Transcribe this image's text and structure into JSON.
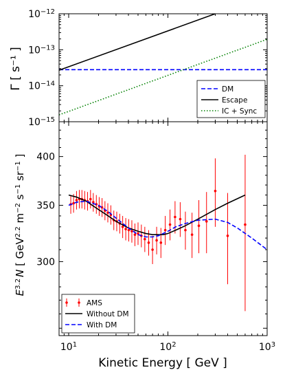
{
  "chart_data": [
    {
      "type": "line",
      "panel": "top",
      "ylabel": "Γ [ s⁻¹ ]",
      "xscale": "log",
      "yscale": "log",
      "xlim": [
        8,
        1000
      ],
      "ylim": [
        1e-15,
        1e-12
      ],
      "yticks": [
        {
          "value": 1e-15,
          "label": "10",
          "exp": "−15"
        },
        {
          "value": 1e-14,
          "label": "10",
          "exp": "−14"
        },
        {
          "value": 1e-13,
          "label": "10",
          "exp": "−13"
        },
        {
          "value": 1e-12,
          "label": "10",
          "exp": "−12"
        }
      ],
      "legend_position": "bottom-right",
      "series": [
        {
          "name": "DM",
          "color": "#0000ff",
          "style": "dashed",
          "x": [
            8,
            1000
          ],
          "y": [
            2.8e-14,
            2.8e-14
          ]
        },
        {
          "name": "Escape",
          "color": "#000000",
          "style": "solid",
          "x": [
            8,
            300
          ],
          "y": [
            2.7e-14,
            1e-12
          ]
        },
        {
          "name": "IC + Sync",
          "color": "#008000",
          "style": "dotted",
          "x": [
            8,
            1000
          ],
          "y": [
            1.55e-15,
            1.95e-13
          ]
        }
      ]
    },
    {
      "type": "line",
      "panel": "bottom",
      "xlabel": "Kinetic Energy [ GeV ]",
      "ylabel": "E^{3.2} N [ GeV^{2.2} m⁻² s⁻¹ sr⁻¹ ]",
      "xscale": "log",
      "yscale": "log",
      "xlim": [
        8,
        1000
      ],
      "ylim": [
        245,
        440
      ],
      "yticks": [
        300,
        350,
        400
      ],
      "xticks": [
        {
          "value": 10,
          "label": "10",
          "exp": "1"
        },
        {
          "value": 100,
          "label": "10",
          "exp": "2"
        },
        {
          "value": 1000,
          "label": "10",
          "exp": "3"
        }
      ],
      "legend_position": "bottom-left",
      "series": [
        {
          "name": "AMS",
          "color": "#ff0000",
          "style": "points-errorbars",
          "x": [
            10.5,
            11.2,
            12.0,
            12.8,
            13.6,
            14.5,
            15.5,
            16.6,
            17.7,
            19.0,
            20.3,
            21.7,
            23.2,
            24.8,
            26.6,
            28.5,
            30.5,
            32.7,
            35.0,
            37.6,
            40.3,
            43.3,
            46.5,
            50.0,
            54.0,
            58.5,
            64.0,
            70.0,
            77.0,
            85.0,
            94.0,
            105,
            118,
            133,
            150,
            175,
            205,
            245,
            300,
            400,
            600
          ],
          "y": [
            351,
            352,
            355,
            356,
            356,
            355,
            354,
            356,
            353,
            351,
            349,
            348,
            345,
            343,
            341,
            336,
            335,
            333,
            330,
            328,
            327,
            326,
            323,
            324,
            322,
            319,
            316,
            310,
            318,
            316,
            327,
            332,
            339,
            337,
            327,
            323,
            331,
            335,
            364,
            322,
            332
          ],
          "err": [
            9,
            9,
            9,
            9,
            9,
            9,
            9,
            9,
            9,
            9,
            9,
            9,
            9,
            9,
            9,
            9,
            9,
            9,
            10,
            10,
            10,
            10,
            10,
            10,
            10,
            11,
            11,
            12,
            12,
            13,
            13,
            14,
            15,
            16,
            17,
            20,
            24,
            28,
            34,
            40,
            70
          ]
        },
        {
          "name": "Without DM",
          "color": "#000000",
          "style": "solid",
          "x": [
            10,
            12,
            15,
            20,
            25,
            30,
            40,
            50,
            60,
            70,
            80,
            90,
            100,
            120,
            150,
            200,
            300,
            400,
            600
          ],
          "y": [
            360,
            358,
            354,
            346,
            340,
            335,
            329,
            326,
            324,
            323,
            323,
            323,
            324,
            327,
            331,
            337,
            346,
            352,
            360
          ]
        },
        {
          "name": "With DM",
          "color": "#0000ff",
          "style": "dashed",
          "x": [
            10,
            12,
            15,
            20,
            25,
            30,
            40,
            50,
            60,
            70,
            80,
            100,
            120,
            150,
            200,
            300,
            400,
            500,
            700,
            1000
          ],
          "y": [
            350,
            353,
            354,
            350,
            344,
            338,
            329,
            323,
            321,
            321,
            322,
            326,
            330,
            333,
            336,
            337,
            334,
            329,
            320,
            310
          ]
        }
      ]
    }
  ]
}
